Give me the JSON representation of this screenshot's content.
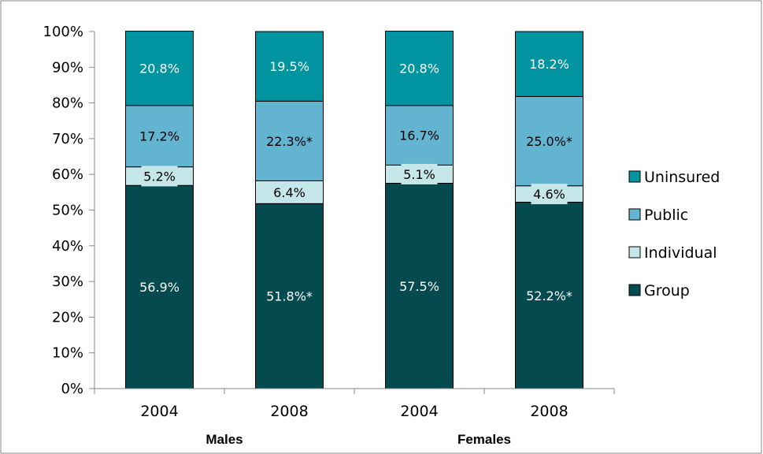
{
  "chart_data": {
    "type": "bar",
    "stacked": true,
    "percent": true,
    "categories": [
      "2004",
      "2008",
      "2004",
      "2008"
    ],
    "groups": [
      {
        "label": "Males",
        "categories": [
          0,
          1
        ]
      },
      {
        "label": "Females",
        "categories": [
          2,
          3
        ]
      }
    ],
    "ylim": [
      0,
      100
    ],
    "yticks": [
      "0%",
      "10%",
      "20%",
      "30%",
      "40%",
      "50%",
      "60%",
      "70%",
      "80%",
      "90%",
      "100%"
    ],
    "legend_position": "right",
    "series": [
      {
        "name": "Group",
        "color": "#044a4e",
        "label_color": "#ffffff",
        "values": [
          56.9,
          51.8,
          57.5,
          52.2
        ],
        "labels": [
          "56.9%",
          "51.8%*",
          "57.5%",
          "52.2%*"
        ]
      },
      {
        "name": "Individual",
        "color": "#c6e7ea",
        "label_color": "#000000",
        "values": [
          5.2,
          6.4,
          5.1,
          4.6
        ],
        "labels": [
          "5.2%",
          "6.4%",
          "5.1%",
          "4.6%"
        ]
      },
      {
        "name": "Public",
        "color": "#62b4d1",
        "label_color": "#000000",
        "values": [
          17.2,
          22.3,
          16.7,
          25.0
        ],
        "labels": [
          "17.2%",
          "22.3%*",
          "16.7%",
          "25.0%*"
        ]
      },
      {
        "name": "Uninsured",
        "color": "#0093a0",
        "label_color": "#ffffff",
        "values": [
          20.8,
          19.5,
          20.8,
          18.2
        ],
        "labels": [
          "20.8%",
          "19.5%",
          "20.8%",
          "18.2%"
        ]
      }
    ]
  }
}
